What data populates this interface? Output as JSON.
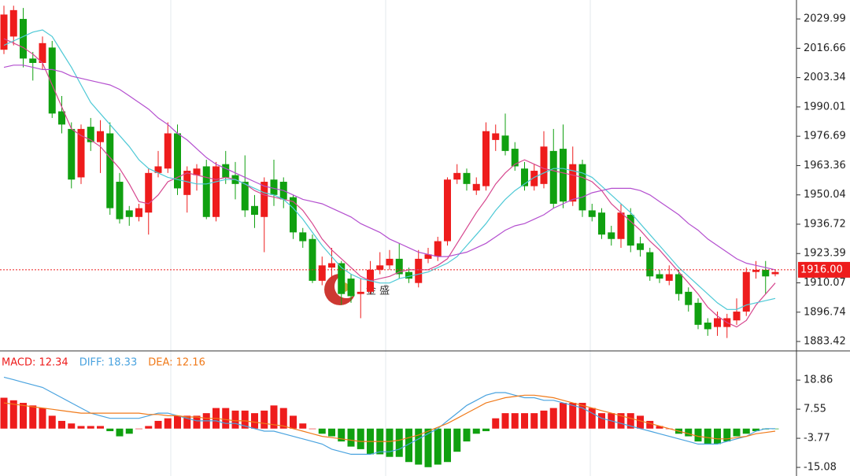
{
  "chart_data": [
    {
      "type": "candlestick",
      "ylim": [
        1879.5,
        2038.6
      ],
      "yticks": [
        2029.99,
        2016.66,
        2003.34,
        1990.01,
        1976.69,
        1963.36,
        1950.04,
        1936.72,
        1923.39,
        1910.07,
        1896.74,
        1883.42
      ],
      "up_color": "#ee1c1c",
      "down_color": "#10a010",
      "open": [
        2016,
        2022,
        2030,
        2012,
        2010,
        2017,
        1988,
        1980,
        1958,
        1981,
        1974,
        1978,
        1956,
        1943,
        1940,
        1942,
        1960,
        1962,
        1978,
        1950,
        1959,
        1963,
        1940,
        1964,
        1959,
        1956,
        1945,
        1940,
        1957,
        1956,
        1949,
        1933,
        1930,
        1911,
        1917,
        1919,
        1912,
        1905,
        1906,
        1916,
        1918,
        1921,
        1915,
        1910,
        1921,
        1922,
        1929,
        1957,
        1960,
        1952,
        1954,
        1975,
        1977,
        1971,
        1962,
        1954,
        1955,
        1970,
        1971,
        1947,
        1964,
        1943,
        1942,
        1933,
        1930,
        1941,
        1928,
        1924,
        1914,
        1911,
        1914,
        1906,
        1901,
        1892,
        1890,
        1890,
        1893,
        1897,
        1915,
        1916,
        1914
      ],
      "high": [
        2036,
        2036,
        2035,
        2015,
        2022,
        2020,
        1995,
        1983,
        1982,
        1985,
        1984,
        1983,
        1960,
        1945,
        1946,
        1962,
        1970,
        1983,
        1982,
        1963,
        1964,
        1966,
        1965,
        1970,
        1965,
        1968,
        1950,
        1958,
        1966,
        1958,
        1950,
        1935,
        1932,
        1922,
        1926,
        1920,
        1914,
        1912,
        1920,
        1924,
        1925,
        1928,
        1917,
        1925,
        1926,
        1931,
        1958,
        1964,
        1962,
        1958,
        1983,
        1982,
        1987,
        1974,
        1965,
        1964,
        1979,
        1980,
        1982,
        1972,
        1966,
        1946,
        1944,
        1936,
        1946,
        1944,
        1931,
        1926,
        1916,
        1918,
        1916,
        1908,
        1903,
        1894,
        1897,
        1896,
        1903,
        1917,
        1920,
        1920,
        1916
      ],
      "low": [
        2014,
        2018,
        2008,
        2002,
        2007,
        1985,
        1978,
        1953,
        1955,
        1970,
        1960,
        1941,
        1937,
        1936,
        1938,
        1932,
        1958,
        1960,
        1950,
        1942,
        1952,
        1939,
        1938,
        1955,
        1948,
        1940,
        1935,
        1924,
        1945,
        1944,
        1930,
        1926,
        1910,
        1909,
        1912,
        1900,
        1901,
        1894,
        1905,
        1914,
        1916,
        1912,
        1910,
        1908,
        1919,
        1920,
        1927,
        1955,
        1952,
        1950,
        1952,
        1970,
        1968,
        1961,
        1952,
        1952,
        1953,
        1944,
        1944,
        1945,
        1940,
        1938,
        1930,
        1927,
        1926,
        1924,
        1922,
        1911,
        1910,
        1909,
        1902,
        1897,
        1889,
        1886,
        1886,
        1885,
        1891,
        1895,
        1912,
        1905,
        1913
      ],
      "close": [
        2032,
        2034,
        2012,
        2010,
        2019,
        1987,
        1982,
        1957,
        1980,
        1974,
        1979,
        1944,
        1939,
        1940,
        1944,
        1960,
        1963,
        1978,
        1953,
        1961,
        1962,
        1940,
        1963,
        1958,
        1955,
        1943,
        1941,
        1956,
        1950,
        1948,
        1933,
        1929,
        1911,
        1918,
        1919,
        1905,
        1904,
        1906,
        1916,
        1918,
        1921,
        1914,
        1912,
        1921,
        1923,
        1929,
        1957,
        1960,
        1955,
        1955,
        1979,
        1978,
        1970,
        1963,
        1954,
        1961,
        1972,
        1946,
        1947,
        1964,
        1943,
        1940,
        1932,
        1930,
        1942,
        1927,
        1925,
        1913,
        1912,
        1914,
        1905,
        1900,
        1891,
        1889,
        1894,
        1894,
        1897,
        1915,
        1916,
        1913,
        1915
      ],
      "series": [
        {
          "color": "#d6478f",
          "values": [
            2021,
            2019,
            2017,
            2014,
            2010,
            2000,
            1990,
            1980,
            1977,
            1975,
            1972,
            1967,
            1962,
            1955,
            1947,
            1946,
            1950,
            1956,
            1958,
            1960,
            1959,
            1958,
            1957,
            1958,
            1957,
            1955,
            1952,
            1950,
            1949,
            1948,
            1947,
            1943,
            1937,
            1930,
            1925,
            1921,
            1917,
            1913,
            1911,
            1912,
            1913,
            1915,
            1916,
            1916,
            1916,
            1918,
            1921,
            1928,
            1935,
            1942,
            1948,
            1955,
            1960,
            1964,
            1966,
            1964,
            1962,
            1961,
            1960,
            1959,
            1958,
            1956,
            1952,
            1946,
            1942,
            1938,
            1934,
            1929,
            1925,
            1920,
            1915,
            1910,
            1905,
            1899,
            1895,
            1892,
            1890,
            1893,
            1900,
            1905,
            1910
          ]
        },
        {
          "color": "#4ec9d6",
          "values": [
            2018,
            2020,
            2022,
            2024,
            2025,
            2022,
            2015,
            2008,
            2000,
            1992,
            1987,
            1982,
            1977,
            1972,
            1966,
            1962,
            1960,
            1958,
            1957,
            1956,
            1955,
            1955,
            1956,
            1957,
            1957,
            1955,
            1953,
            1951,
            1950,
            1948,
            1944,
            1939,
            1933,
            1927,
            1922,
            1917,
            1914,
            1912,
            1911,
            1910,
            1910,
            1912,
            1913,
            1914,
            1915,
            1917,
            1919,
            1922,
            1927,
            1932,
            1937,
            1943,
            1948,
            1952,
            1955,
            1958,
            1960,
            1962,
            1962,
            1961,
            1960,
            1958,
            1954,
            1950,
            1946,
            1942,
            1937,
            1932,
            1927,
            1922,
            1917,
            1913,
            1909,
            1905,
            1901,
            1898,
            1898,
            1900,
            1901,
            1902,
            1903
          ]
        },
        {
          "color": "#b44fcf",
          "values": [
            2008,
            2009,
            2009,
            2008,
            2007,
            2007,
            2006,
            2004,
            2003,
            2002,
            2001,
            2000,
            1998,
            1995,
            1992,
            1989,
            1985,
            1982,
            1978,
            1975,
            1971,
            1967,
            1964,
            1962,
            1960,
            1958,
            1956,
            1954,
            1953,
            1952,
            1950,
            1948,
            1947,
            1946,
            1944,
            1942,
            1940,
            1937,
            1935,
            1933,
            1930,
            1928,
            1926,
            1924,
            1923,
            1922,
            1922,
            1923,
            1924,
            1926,
            1928,
            1931,
            1934,
            1936,
            1937,
            1939,
            1941,
            1944,
            1946,
            1948,
            1949,
            1951,
            1952,
            1953,
            1953,
            1953,
            1952,
            1950,
            1947,
            1944,
            1941,
            1937,
            1934,
            1930,
            1927,
            1924,
            1921,
            1919,
            1918,
            1917,
            1916
          ]
        }
      ],
      "last_price": {
        "value": 1916,
        "label": "1916.00"
      },
      "watermark": "金 盛"
    },
    {
      "type": "macd",
      "ylim": [
        -16.9,
        29.9
      ],
      "yticks": [
        18.86,
        7.55,
        -3.77,
        -15.08
      ],
      "legend": [
        {
          "label": "MACD: 12.34",
          "color": "#ee1c1c"
        },
        {
          "label": "DIFF: 18.33",
          "color": "#4aa3df"
        },
        {
          "label": "DEA: 12.16",
          "color": "#f07a1a"
        }
      ],
      "up_color": "#ee1c1c",
      "down_color": "#10a010",
      "values": [
        12,
        11,
        10,
        9,
        8,
        5,
        3,
        2,
        1,
        1,
        1,
        -1,
        -3,
        -2,
        0,
        1,
        3,
        4,
        5,
        5,
        5,
        6,
        8,
        8,
        7,
        7,
        6,
        7,
        9,
        8,
        5,
        2,
        0,
        -2,
        -3,
        -5,
        -7,
        -8,
        -10,
        -10,
        -11,
        -11,
        -13,
        -14,
        -15,
        -14,
        -13,
        -9,
        -5,
        -2,
        -1,
        4,
        6,
        6,
        6,
        6,
        7,
        8,
        10,
        10,
        10,
        8,
        6,
        6,
        6,
        6,
        5,
        3,
        1,
        0,
        -2,
        -3,
        -5,
        -6,
        -6,
        -5,
        -3,
        -2,
        -1,
        -0.3,
        -0.2
      ],
      "series": [
        {
          "color": "#4aa3df",
          "values": [
            20,
            19,
            18,
            17,
            16,
            14,
            12,
            10,
            8,
            6,
            5,
            4,
            4,
            4,
            4,
            5,
            6,
            6,
            5,
            4,
            3,
            3,
            3,
            2,
            2,
            1,
            0,
            -1,
            -1,
            -2,
            -3,
            -4,
            -5,
            -6,
            -8,
            -9,
            -10,
            -10,
            -10,
            -9,
            -9,
            -8,
            -6,
            -4,
            -2,
            0,
            3,
            6,
            9,
            11,
            13,
            14,
            14,
            13,
            12,
            12,
            11,
            11,
            10,
            9,
            8,
            6,
            4,
            3,
            2,
            1,
            0,
            -1,
            -2,
            -3,
            -4,
            -5,
            -6,
            -6,
            -6,
            -5,
            -4,
            -3,
            -1,
            0,
            0
          ]
        },
        {
          "color": "#f07a1a",
          "values": [
            10,
            9.5,
            9,
            8.5,
            8,
            7.5,
            7,
            6.5,
            6,
            6,
            6,
            6,
            6,
            6,
            6,
            5.5,
            5.5,
            5,
            5,
            4.5,
            4.5,
            4,
            4,
            3.5,
            3,
            3,
            2.5,
            2,
            1.5,
            1,
            0,
            -1,
            -2,
            -3,
            -3.5,
            -4,
            -4.5,
            -5,
            -5,
            -5,
            -5,
            -4.5,
            -3.5,
            -2.5,
            -1,
            0.5,
            2,
            4,
            6,
            8,
            10,
            11,
            12,
            12.5,
            13,
            13,
            12.5,
            12,
            11,
            10,
            9,
            8,
            7,
            6,
            5,
            4,
            3,
            2,
            1,
            0,
            -1,
            -2,
            -3,
            -3.5,
            -4,
            -4,
            -3.5,
            -3,
            -2,
            -1.5,
            -1
          ]
        }
      ]
    }
  ]
}
